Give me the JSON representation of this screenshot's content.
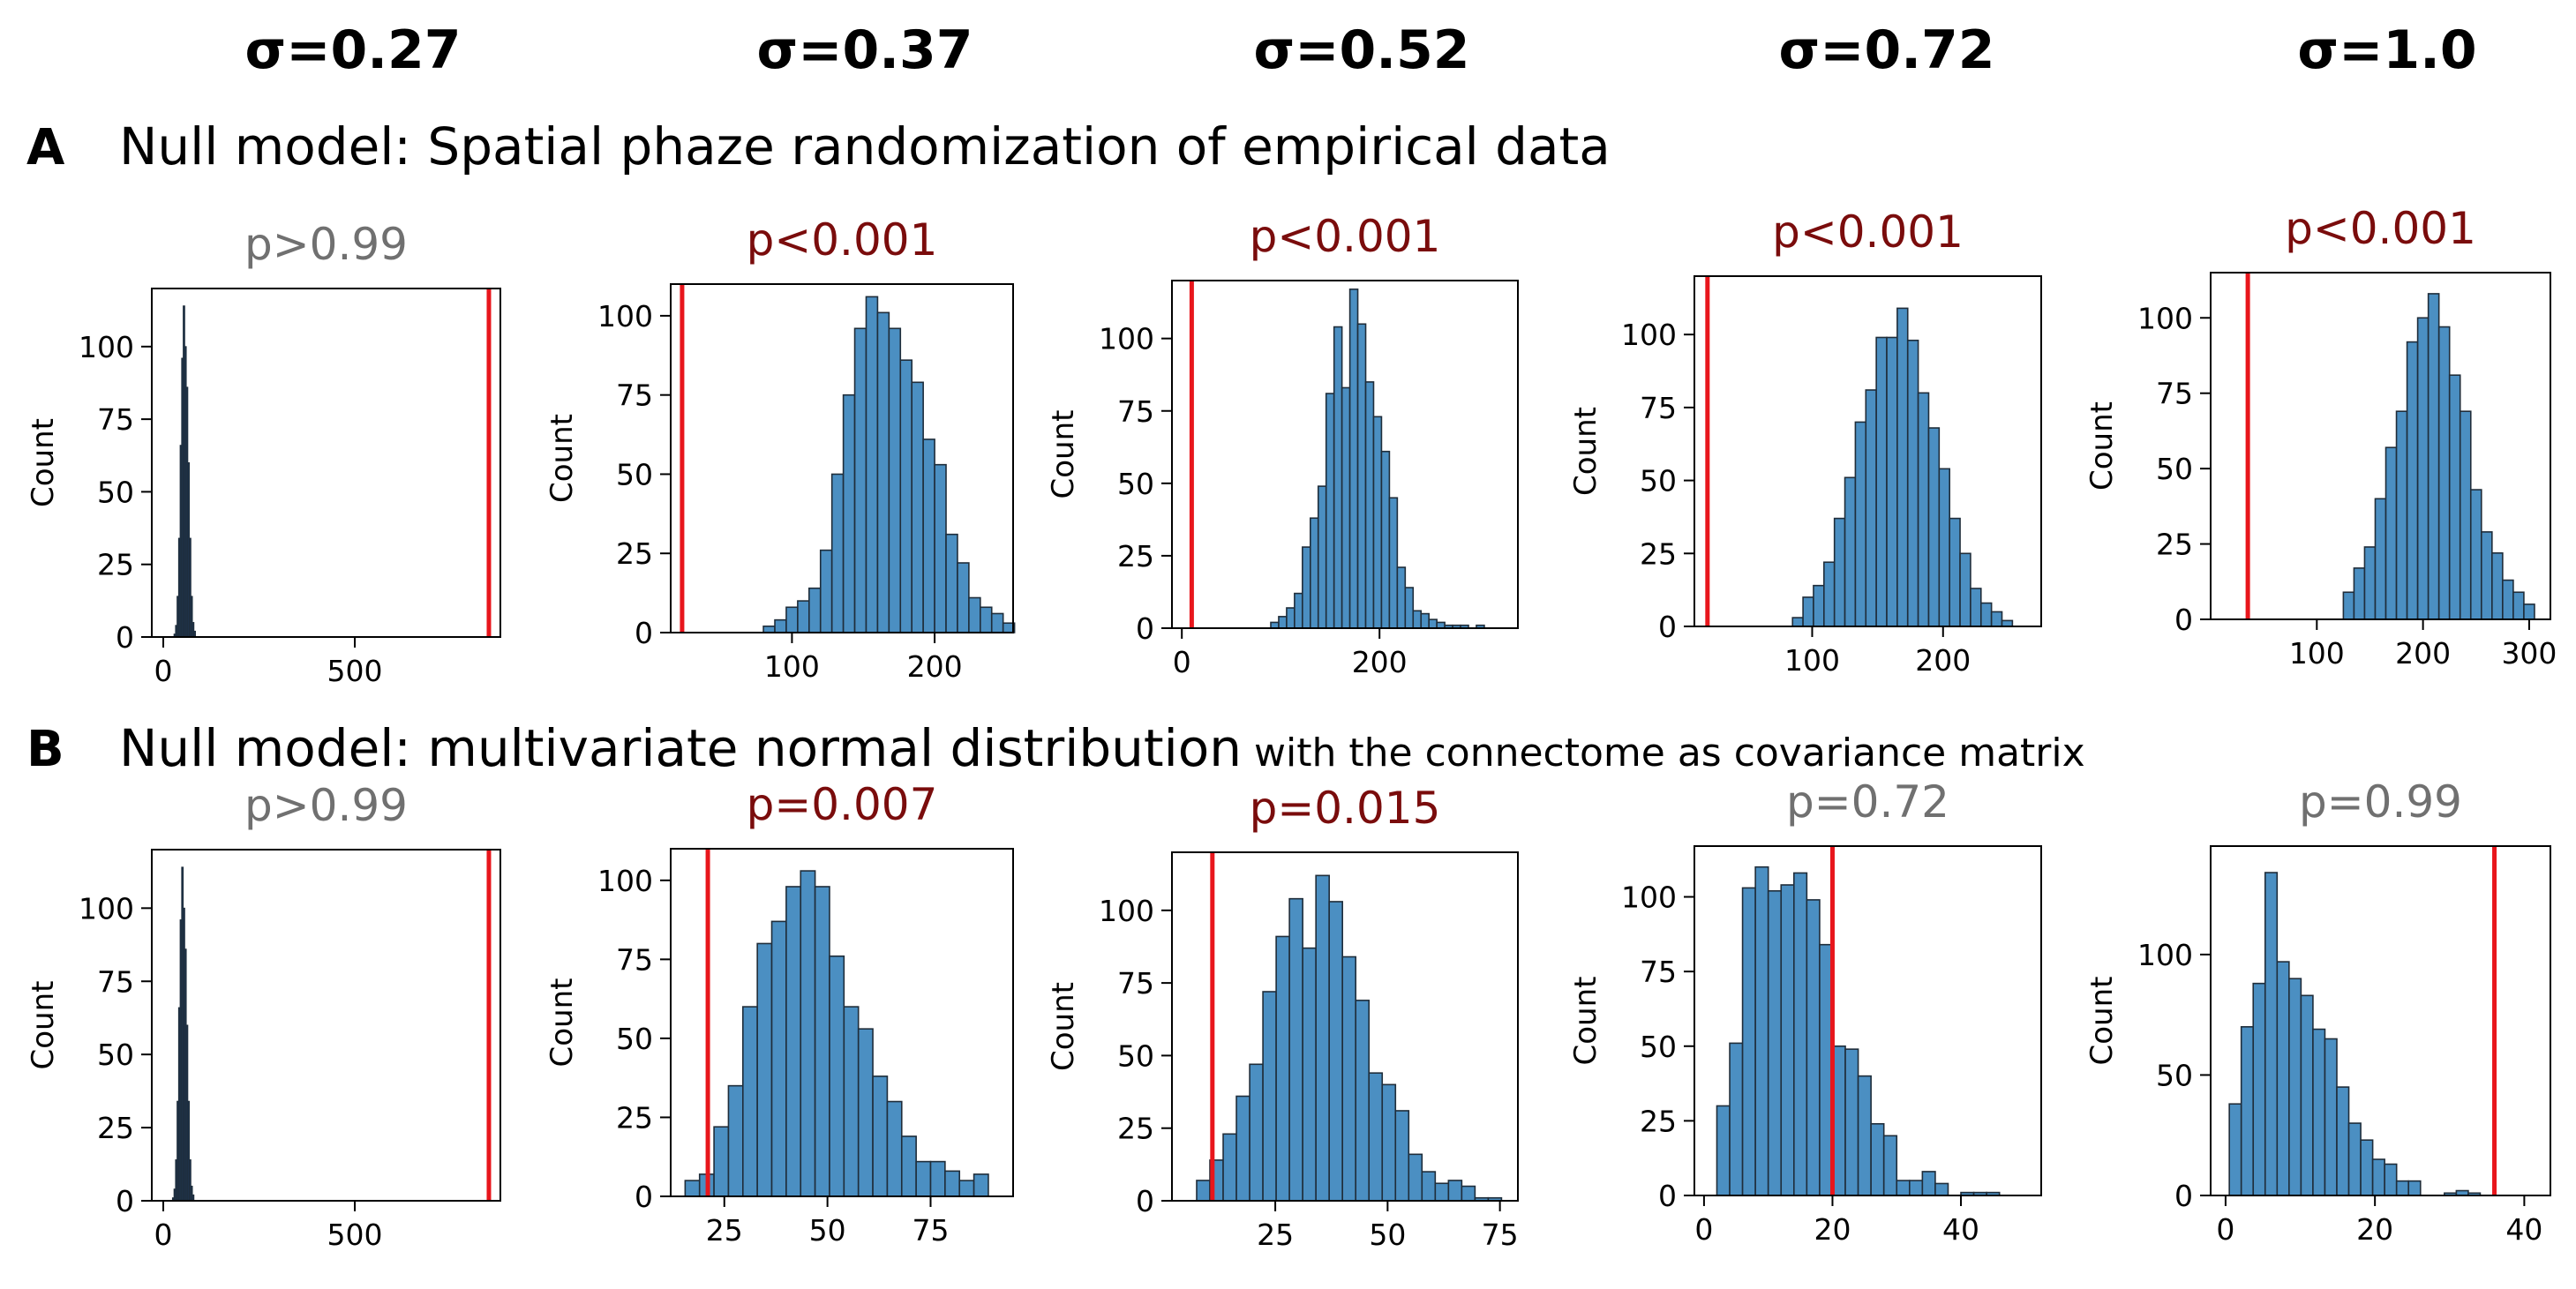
{
  "sigma_labels": [
    "σ=0.27",
    "σ=0.37",
    "σ=0.52",
    "σ=0.72",
    "σ=1.0"
  ],
  "rows": [
    {
      "letter": "A",
      "title": "Null model: Spatial phaze randomization of empirical data",
      "subtitle": ""
    },
    {
      "letter": "B",
      "title": "Null model: multivariate normal distribution",
      "subtitle": "with the connectome as covariance matrix"
    }
  ],
  "colors": {
    "bar": "#4b8fc2",
    "bar_edge": "#1f2d3a",
    "bar_dense": "#1e3550",
    "observed": "#e8161c",
    "p_significant": "#7a0c0c",
    "p_nonsignificant": "#707070"
  },
  "chart_data": [
    {
      "type": "bar",
      "row": 0,
      "col": 0,
      "p_label": "p>0.99",
      "significant": false,
      "ylabel": "Count",
      "xlim": [
        -30,
        880
      ],
      "ylim": [
        0,
        120
      ],
      "xticks": [
        0,
        500
      ],
      "yticks": [
        0,
        25,
        50,
        75,
        100
      ],
      "observed": 850,
      "dense": true,
      "bin_start": 28,
      "bin_width": 4,
      "values": [
        1,
        4,
        14,
        34,
        66,
        96,
        114,
        100,
        86,
        60,
        34,
        14,
        5,
        2
      ]
    },
    {
      "type": "bar",
      "row": 0,
      "col": 1,
      "p_label": "p<0.001",
      "significant": true,
      "ylabel": "Count",
      "xlim": [
        15,
        255
      ],
      "ylim": [
        0,
        110
      ],
      "xticks": [
        100,
        200
      ],
      "yticks": [
        0,
        25,
        50,
        75,
        100
      ],
      "observed": 23,
      "bin_start": 80,
      "bin_width": 8,
      "values": [
        2,
        4,
        8,
        10,
        14,
        26,
        50,
        75,
        96,
        106,
        101,
        96,
        86,
        79,
        61,
        53,
        31,
        22,
        11,
        8,
        6,
        3
      ]
    },
    {
      "type": "bar",
      "row": 0,
      "col": 2,
      "p_label": "p<0.001",
      "significant": true,
      "ylabel": "Count",
      "xlim": [
        -10,
        340
      ],
      "ylim": [
        0,
        120
      ],
      "xticks": [
        0,
        200
      ],
      "yticks": [
        0,
        25,
        50,
        75,
        100
      ],
      "observed": 10,
      "bin_start": 90,
      "bin_width": 8,
      "values": [
        2,
        4,
        7,
        12,
        28,
        38,
        49,
        81,
        104,
        83,
        117,
        105,
        85,
        73,
        61,
        45,
        21,
        14,
        6,
        5,
        3,
        2,
        1,
        1,
        1,
        0,
        1
      ]
    },
    {
      "type": "bar",
      "row": 0,
      "col": 3,
      "p_label": "p<0.001",
      "significant": true,
      "ylabel": "Count",
      "xlim": [
        10,
        275
      ],
      "ylim": [
        0,
        120
      ],
      "xticks": [
        100,
        200
      ],
      "yticks": [
        0,
        25,
        50,
        75,
        100
      ],
      "observed": 20,
      "bin_start": 85,
      "bin_width": 8,
      "values": [
        3,
        10,
        14,
        22,
        37,
        51,
        70,
        81,
        99,
        99,
        109,
        98,
        80,
        68,
        54,
        37,
        25,
        13,
        8,
        5,
        2
      ]
    },
    {
      "type": "bar",
      "row": 0,
      "col": 4,
      "p_label": "p<0.001",
      "significant": true,
      "ylabel": "Count",
      "xlim": [
        0,
        320
      ],
      "ylim": [
        0,
        115
      ],
      "xticks": [
        100,
        200,
        300
      ],
      "yticks": [
        0,
        25,
        50,
        75,
        100
      ],
      "observed": 35,
      "bin_start": 125,
      "bin_width": 10,
      "values": [
        9,
        17,
        24,
        40,
        57,
        69,
        92,
        100,
        108,
        97,
        81,
        69,
        43,
        29,
        22,
        13,
        9,
        5
      ]
    },
    {
      "type": "bar",
      "row": 1,
      "col": 0,
      "p_label": "p>0.99",
      "significant": false,
      "ylabel": "Count",
      "xlim": [
        -30,
        880
      ],
      "ylim": [
        0,
        120
      ],
      "xticks": [
        0,
        500
      ],
      "yticks": [
        0,
        25,
        50,
        75,
        100
      ],
      "observed": 850,
      "dense": true,
      "bin_start": 24,
      "bin_width": 4,
      "values": [
        1,
        4,
        14,
        34,
        66,
        96,
        114,
        100,
        86,
        60,
        34,
        14,
        5,
        2
      ]
    },
    {
      "type": "bar",
      "row": 1,
      "col": 1,
      "p_label": "p=0.007",
      "significant": true,
      "ylabel": "Count",
      "xlim": [
        12,
        95
      ],
      "ylim": [
        0,
        110
      ],
      "xticks": [
        25,
        50,
        75
      ],
      "yticks": [
        0,
        25,
        50,
        75,
        100
      ],
      "observed": 21,
      "bin_start": 15.5,
      "bin_width": 3.5,
      "values": [
        5,
        7,
        22,
        35,
        60,
        80,
        87,
        98,
        103,
        98,
        76,
        60,
        53,
        38,
        30,
        19,
        11,
        11,
        8,
        5,
        7
      ]
    },
    {
      "type": "bar",
      "row": 1,
      "col": 2,
      "p_label": "p=0.015",
      "significant": true,
      "ylabel": "Count",
      "xlim": [
        2,
        79
      ],
      "ylim": [
        0,
        120
      ],
      "xticks": [
        25,
        50,
        75
      ],
      "yticks": [
        0,
        25,
        50,
        75,
        100
      ],
      "observed": 11,
      "bin_start": 7.5,
      "bin_width": 2.95,
      "values": [
        7,
        14,
        23,
        36,
        47,
        72,
        91,
        104,
        87,
        112,
        103,
        84,
        69,
        44,
        40,
        31,
        16,
        10,
        6,
        7,
        5,
        1,
        1
      ]
    },
    {
      "type": "bar",
      "row": 1,
      "col": 3,
      "p_label": "p=0.72",
      "significant": false,
      "ylabel": "Count",
      "xlim": [
        -1.5,
        52.5
      ],
      "ylim": [
        0,
        117
      ],
      "xticks": [
        0,
        20,
        40
      ],
      "yticks": [
        0,
        25,
        50,
        75,
        100
      ],
      "observed": 20,
      "bin_start": 2,
      "bin_width": 2,
      "values": [
        30,
        51,
        103,
        110,
        102,
        104,
        108,
        99,
        84,
        50,
        49,
        40,
        24,
        20,
        5,
        5,
        8,
        4,
        0,
        1,
        1,
        1
      ]
    },
    {
      "type": "bar",
      "row": 1,
      "col": 4,
      "p_label": "p=0.99",
      "significant": false,
      "ylabel": "Count",
      "xlim": [
        -2,
        43.5
      ],
      "ylim": [
        0,
        145
      ],
      "xticks": [
        0,
        20,
        40
      ],
      "yticks": [
        0,
        50,
        100
      ],
      "observed": 36,
      "bin_start": 0.5,
      "bin_width": 1.6,
      "values": [
        38,
        70,
        88,
        134,
        97,
        90,
        83,
        69,
        65,
        45,
        30,
        23,
        15,
        13,
        6,
        6,
        0,
        0,
        1,
        2,
        1
      ]
    }
  ]
}
